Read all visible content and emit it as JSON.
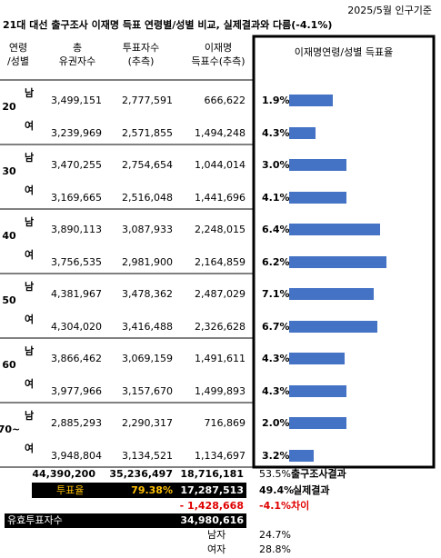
{
  "note": "2025/5월 인구기준",
  "title": "21대 대선 출구조사 이재명 득표 연령별/성별 비교, 실제결과와 다름(-4.1%)",
  "headers": [
    [
      "연령",
      "/성별"
    ],
    [
      "총",
      "유권자수"
    ],
    [
      "투표자수",
      "(추측)"
    ],
    [
      "이재명",
      "득표수(추측)"
    ],
    [
      "이재명연령/성별 득표율"
    ]
  ],
  "bar_color": "#4472c4",
  "groups": [
    {
      "age": "20",
      "rows": [
        {
          "sex": "남",
          "voters": "3,499,151",
          "turnout": "2,777,591",
          "lee": "666,622",
          "pct": "1.9%",
          "bar": 48
        },
        {
          "sex": "여",
          "voters": "3,239,969",
          "turnout": "2,571,855",
          "lee": "1,494,248",
          "pct": "4.3%",
          "bar": 29
        }
      ]
    },
    {
      "age": "30",
      "rows": [
        {
          "sex": "남",
          "voters": "3,470,255",
          "turnout": "2,754,654",
          "lee": "1,044,014",
          "pct": "3.0%",
          "bar": 63
        },
        {
          "sex": "여",
          "voters": "3,169,665",
          "turnout": "2,516,048",
          "lee": "1,441,696",
          "pct": "4.1%",
          "bar": 63
        }
      ]
    },
    {
      "age": "40",
      "rows": [
        {
          "sex": "남",
          "voters": "3,890,113",
          "turnout": "3,087,933",
          "lee": "2,248,015",
          "pct": "6.4%",
          "bar": 100
        },
        {
          "sex": "여",
          "voters": "3,756,535",
          "turnout": "2,981,900",
          "lee": "2,164,859",
          "pct": "6.2%",
          "bar": 107
        }
      ]
    },
    {
      "age": "50",
      "rows": [
        {
          "sex": "남",
          "voters": "4,381,967",
          "turnout": "3,478,362",
          "lee": "2,487,029",
          "pct": "7.1%",
          "bar": 93
        },
        {
          "sex": "여",
          "voters": "4,304,020",
          "turnout": "3,416,488",
          "lee": "2,326,628",
          "pct": "6.7%",
          "bar": 97
        }
      ]
    },
    {
      "age": "60",
      "rows": [
        {
          "sex": "남",
          "voters": "3,866,462",
          "turnout": "3,069,159",
          "lee": "1,491,611",
          "pct": "4.3%",
          "bar": 61
        },
        {
          "sex": "여",
          "voters": "3,977,966",
          "turnout": "3,157,670",
          "lee": "1,499,893",
          "pct": "4.3%",
          "bar": 63
        }
      ]
    },
    {
      "age": "70~",
      "rows": [
        {
          "sex": "남",
          "voters": "2,885,293",
          "turnout": "2,290,317",
          "lee": "716,869",
          "pct": "2.0%",
          "bar": 63
        },
        {
          "sex": "여",
          "voters": "3,948,804",
          "turnout": "3,134,521",
          "lee": "1,134,697",
          "pct": "3.2%",
          "bar": 27
        }
      ]
    }
  ],
  "totals": {
    "voters": "44,390,200",
    "turnout": "35,236,497",
    "lee": "18,716,181",
    "pct": "53.5%",
    "label": "출구조사결과"
  },
  "actual": {
    "rate_label": "투표율",
    "rate": "79.38%",
    "lee": "17,287,513",
    "pct": "49.4%",
    "label": "실제결과"
  },
  "diff": {
    "lee": "- 1,428,668",
    "pct": "-4.1%",
    "label": "차이"
  },
  "valid": {
    "label": "유효투표자수",
    "value": "34,980,616"
  },
  "sex_pct": [
    {
      "sex": "남자",
      "pct": "24.7%"
    },
    {
      "sex": "여자",
      "pct": "28.8%"
    }
  ]
}
